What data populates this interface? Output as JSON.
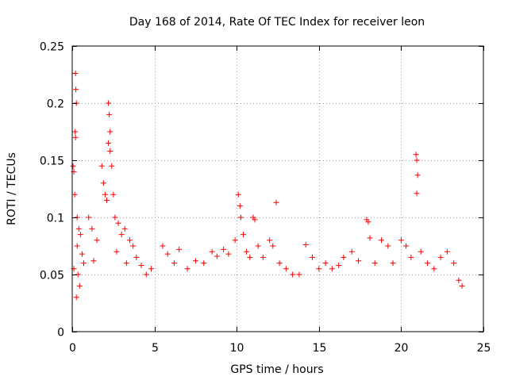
{
  "chart_data": {
    "type": "scatter",
    "title": "Day 168 of 2014, Rate Of TEC Index for receiver leon",
    "xlabel": "GPS time / hours",
    "ylabel": "ROTI / TECUs",
    "xlim": [
      0,
      25
    ],
    "ylim": [
      0,
      0.25
    ],
    "x_ticks": [
      0,
      5,
      10,
      15,
      20,
      25
    ],
    "x_tick_labels": [
      "0",
      "5",
      "10",
      "15",
      "20",
      "25"
    ],
    "y_ticks": [
      0,
      0.05,
      0.1,
      0.15,
      0.2,
      0.25
    ],
    "y_tick_labels": [
      "0",
      "0.05",
      "0.1",
      "0.15",
      "0.2",
      "0.25"
    ],
    "grid": true,
    "legend": "none",
    "marker": "+",
    "series": [
      {
        "name": "ROTI",
        "color": "#ff0000",
        "points": [
          [
            0.05,
            0.145
          ],
          [
            0.1,
            0.14
          ],
          [
            0.2,
            0.226
          ],
          [
            0.22,
            0.212
          ],
          [
            0.25,
            0.2
          ],
          [
            0.18,
            0.175
          ],
          [
            0.2,
            0.17
          ],
          [
            0.15,
            0.12
          ],
          [
            0.3,
            0.1
          ],
          [
            0.4,
            0.09
          ],
          [
            0.5,
            0.085
          ],
          [
            0.3,
            0.075
          ],
          [
            0.6,
            0.068
          ],
          [
            0.7,
            0.06
          ],
          [
            0.1,
            0.055
          ],
          [
            0.35,
            0.05
          ],
          [
            0.45,
            0.04
          ],
          [
            0.25,
            0.03
          ],
          [
            1.0,
            0.1
          ],
          [
            1.2,
            0.09
          ],
          [
            1.5,
            0.08
          ],
          [
            1.8,
            0.145
          ],
          [
            1.9,
            0.13
          ],
          [
            2.0,
            0.12
          ],
          [
            2.1,
            0.115
          ],
          [
            2.2,
            0.2
          ],
          [
            2.25,
            0.19
          ],
          [
            2.3,
            0.175
          ],
          [
            2.2,
            0.165
          ],
          [
            2.3,
            0.158
          ],
          [
            2.4,
            0.145
          ],
          [
            2.5,
            0.12
          ],
          [
            2.6,
            0.1
          ],
          [
            2.8,
            0.095
          ],
          [
            3.0,
            0.085
          ],
          [
            3.2,
            0.09
          ],
          [
            3.5,
            0.08
          ],
          [
            3.7,
            0.075
          ],
          [
            3.9,
            0.065
          ],
          [
            2.7,
            0.07
          ],
          [
            3.3,
            0.06
          ],
          [
            1.3,
            0.062
          ],
          [
            4.2,
            0.058
          ],
          [
            4.5,
            0.05
          ],
          [
            4.8,
            0.055
          ],
          [
            5.5,
            0.075
          ],
          [
            5.8,
            0.068
          ],
          [
            6.2,
            0.06
          ],
          [
            6.5,
            0.072
          ],
          [
            7.0,
            0.055
          ],
          [
            7.5,
            0.062
          ],
          [
            8.0,
            0.06
          ],
          [
            8.5,
            0.07
          ],
          [
            8.8,
            0.066
          ],
          [
            9.2,
            0.072
          ],
          [
            9.5,
            0.068
          ],
          [
            9.9,
            0.08
          ],
          [
            10.1,
            0.12
          ],
          [
            10.2,
            0.11
          ],
          [
            10.25,
            0.1
          ],
          [
            10.4,
            0.085
          ],
          [
            10.6,
            0.07
          ],
          [
            10.8,
            0.065
          ],
          [
            11.0,
            0.1
          ],
          [
            11.1,
            0.098
          ],
          [
            11.3,
            0.075
          ],
          [
            11.6,
            0.065
          ],
          [
            12.0,
            0.08
          ],
          [
            12.2,
            0.075
          ],
          [
            12.4,
            0.113
          ],
          [
            12.6,
            0.06
          ],
          [
            13.0,
            0.055
          ],
          [
            13.4,
            0.05
          ],
          [
            13.8,
            0.05
          ],
          [
            14.2,
            0.076
          ],
          [
            14.6,
            0.065
          ],
          [
            15.0,
            0.055
          ],
          [
            15.4,
            0.06
          ],
          [
            15.8,
            0.055
          ],
          [
            16.2,
            0.058
          ],
          [
            16.5,
            0.065
          ],
          [
            17.0,
            0.07
          ],
          [
            17.4,
            0.062
          ],
          [
            17.9,
            0.098
          ],
          [
            18.0,
            0.096
          ],
          [
            18.1,
            0.082
          ],
          [
            18.4,
            0.06
          ],
          [
            18.8,
            0.08
          ],
          [
            19.2,
            0.075
          ],
          [
            19.5,
            0.06
          ],
          [
            20.0,
            0.08
          ],
          [
            20.3,
            0.075
          ],
          [
            20.6,
            0.065
          ],
          [
            20.9,
            0.155
          ],
          [
            20.95,
            0.15
          ],
          [
            21.0,
            0.137
          ],
          [
            20.95,
            0.121
          ],
          [
            21.2,
            0.07
          ],
          [
            21.6,
            0.06
          ],
          [
            22.0,
            0.055
          ],
          [
            22.4,
            0.065
          ],
          [
            22.8,
            0.07
          ],
          [
            23.2,
            0.06
          ],
          [
            23.5,
            0.045
          ],
          [
            23.7,
            0.04
          ]
        ]
      }
    ]
  }
}
